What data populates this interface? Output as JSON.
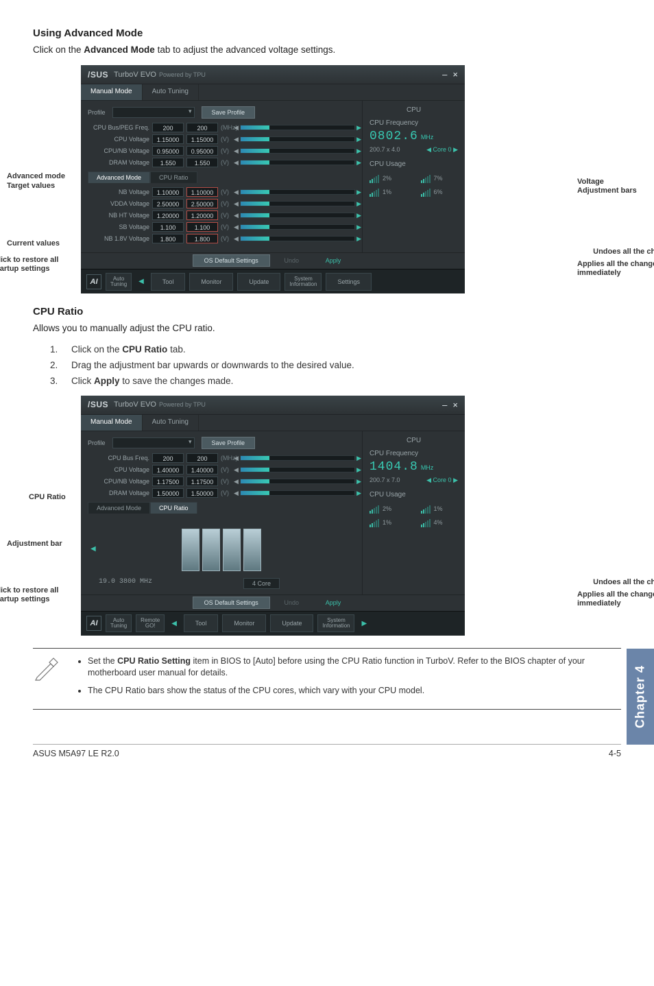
{
  "sections": {
    "advanced": {
      "heading": "Using Advanced Mode",
      "intro_a": "Click on the ",
      "intro_b": "Advanced Mode",
      "intro_c": " tab to adjust the advanced voltage settings."
    },
    "ratio": {
      "heading": "CPU Ratio",
      "intro": "Allows you to manually adjust the CPU ratio.",
      "steps": {
        "s1a": "Click on the ",
        "s1b": "CPU Ratio",
        "s1c": " tab.",
        "s2": "Drag the adjustment bar upwards or downwards to the desired value.",
        "s3a": "Click ",
        "s3b": "Apply",
        "s3c": " to save the changes made."
      }
    }
  },
  "app": {
    "logo": "/SUS",
    "title": "TurboV EVO",
    "powered": "Powered by TPU",
    "minimize": "–",
    "close": "×",
    "tabs": {
      "manual": "Manual Mode",
      "auto": "Auto Tuning"
    },
    "profile_label": "Profile",
    "save_profile": "Save Profile",
    "rows1": [
      {
        "n": "CPU Bus/PEG Freq.",
        "c": "200",
        "t": "200",
        "u": "(MHz)"
      },
      {
        "n": "CPU Voltage",
        "c": "1.15000",
        "t": "1.15000",
        "u": "(V)"
      },
      {
        "n": "CPU/NB Voltage",
        "c": "0.95000",
        "t": "0.95000",
        "u": "(V)"
      },
      {
        "n": "DRAM Voltage",
        "c": "1.550",
        "t": "1.550",
        "u": "(V)"
      }
    ],
    "subtabs": {
      "adv": "Advanced Mode",
      "ratio": "CPU Ratio"
    },
    "rows2": [
      {
        "n": "NB Voltage",
        "c": "1.10000",
        "t": "1.10000",
        "u": "(V)"
      },
      {
        "n": "VDDA Voltage",
        "c": "2.50000",
        "t": "2.50000",
        "u": "(V)"
      },
      {
        "n": "NB HT Voltage",
        "c": "1.20000",
        "t": "1.20000",
        "u": "(V)"
      },
      {
        "n": "SB Voltage",
        "c": "1.100",
        "t": "1.100",
        "u": "(V)"
      },
      {
        "n": "NB 1.8V Voltage",
        "c": "1.800",
        "t": "1.800",
        "u": "(V)"
      }
    ],
    "os_default": "OS Default Settings",
    "undo": "Undo",
    "apply": "Apply",
    "nav": {
      "auto": "Auto\nTuning",
      "remote": "Remote\nGO!",
      "tool": "Tool",
      "monitor": "Monitor",
      "update": "Update",
      "sys": "System\nInformation",
      "settings": "Settings"
    },
    "cpu_panel": {
      "label": "CPU",
      "freq_label": "CPU Frequency",
      "freq1": "0802.6",
      "freq1u": "MHz",
      "sub1a": "200.7 x 4.0",
      "sub1b": "Core 0",
      "usage_label": "CPU Usage",
      "u": [
        "2%",
        "7%",
        "1%",
        "6%"
      ],
      "freq2": "1404.8",
      "freq2u": "MHz",
      "sub2a": "200.7 x 7.0",
      "sub2b": "Core 0",
      "u2": [
        "2%",
        "1%",
        "1%",
        "4%"
      ]
    },
    "ratio_readout": "19.0",
    "ratio_sub": "3800 MHz",
    "ratio_core": "4 Core",
    "rows1b": [
      {
        "n": "CPU Bus Freq.",
        "c": "200",
        "t": "200",
        "u": "(MHz)"
      },
      {
        "n": "CPU Voltage",
        "c": "1.40000",
        "t": "1.40000",
        "u": "(V)"
      },
      {
        "n": "CPU/NB Voltage",
        "c": "1.17500",
        "t": "1.17500",
        "u": "(V)"
      },
      {
        "n": "DRAM Voltage",
        "c": "1.50000",
        "t": "1.50000",
        "u": "(V)"
      }
    ]
  },
  "labels": {
    "advanced_mode": "Advanced mode",
    "target_values": "Target values",
    "current_values": "Current values",
    "click_restore": "Click to restore all startup settings",
    "voltage_adj": "Voltage Adjustment bars",
    "undoes": "Undoes all the changes",
    "applies": "Applies all the changes immediately",
    "cpu_ratio": "CPU Ratio",
    "adj_bar": "Adjustment bar"
  },
  "notes": {
    "n1a": "Set the ",
    "n1b": "CPU Ratio Setting",
    "n1c": " item in BIOS to [Auto] before using the CPU Ratio function in TurboV. Refer to the BIOS chapter of your motherboard user manual for details.",
    "n2": "The CPU Ratio bars show the status of the CPU cores, which vary with your CPU model."
  },
  "chapter": "Chapter 4",
  "footer": {
    "left": "ASUS M5A97 LE R2.0",
    "right": "4-5"
  }
}
